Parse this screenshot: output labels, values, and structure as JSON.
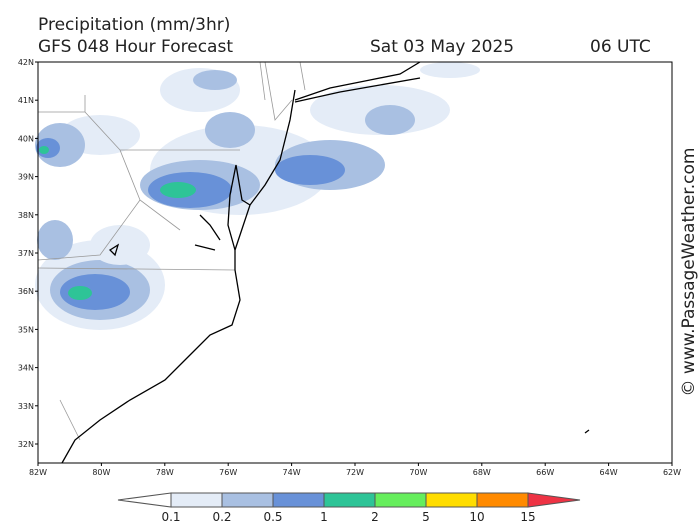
{
  "header": {
    "title": "Precipitation (mm/3hr)",
    "subtitle": "GFS 048 Hour Forecast",
    "date": "Sat 03 May 2025",
    "time": "06 UTC"
  },
  "map": {
    "lat_labels": [
      "42N",
      "41N",
      "40N",
      "39N",
      "38N",
      "37N",
      "36N",
      "35N",
      "34N",
      "33N",
      "32N"
    ],
    "lon_labels": [
      "82W",
      "80W",
      "78W",
      "76W",
      "74W",
      "72W",
      "70W",
      "68W",
      "66W",
      "64W",
      "62W"
    ]
  },
  "colorbar": {
    "levels": [
      0.1,
      0.2,
      0.5,
      1,
      2,
      5,
      10,
      15
    ],
    "colors": [
      "#ffffff",
      "#e4ecf7",
      "#a9c0e2",
      "#6891d8",
      "#2ec497",
      "#66ee5c",
      "#ffdd00",
      "#ff8a00",
      "#ee3344"
    ]
  },
  "credit": "© www.PassageWeather.com"
}
